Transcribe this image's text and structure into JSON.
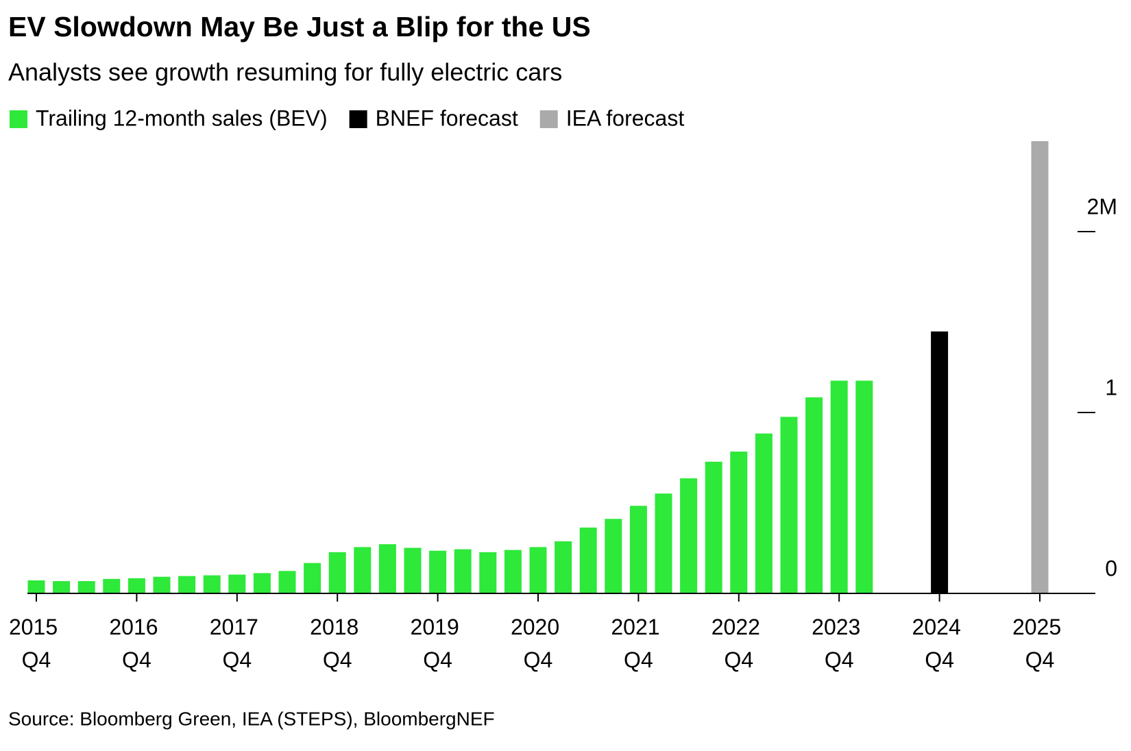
{
  "chart_data": {
    "type": "bar",
    "title": "EV Slowdown May Be Just a Blip for the US",
    "subtitle": "Analysts see growth resuming for fully electric cars",
    "source": "Source: Bloomberg Green, IEA (STEPS), BloombergNEF",
    "categories": [
      "2015 Q4",
      null,
      null,
      null,
      "2016 Q4",
      null,
      null,
      null,
      "2017 Q4",
      null,
      null,
      null,
      "2018 Q4",
      null,
      null,
      null,
      "2019 Q4",
      null,
      null,
      null,
      "2020 Q4",
      null,
      null,
      null,
      "2021 Q4",
      null,
      null,
      null,
      "2022 Q4",
      null,
      null,
      null,
      "2023 Q4",
      null,
      null,
      null,
      "2024 Q4",
      null,
      null,
      null,
      "2025 Q4"
    ],
    "series": [
      {
        "name": "Trailing 12-month sales (BEV)",
        "color": "#2ee83a",
        "values": [
          72000,
          68000,
          68000,
          80000,
          84000,
          92000,
          96000,
          100000,
          104000,
          112000,
          124000,
          168000,
          228000,
          256000,
          272000,
          252000,
          236000,
          244000,
          228000,
          240000,
          256000,
          288000,
          364000,
          412000,
          484000,
          552000,
          636000,
          728000,
          784000,
          884000,
          976000,
          1084000,
          1176000,
          1176000,
          null,
          null,
          null,
          null,
          null,
          null,
          null
        ]
      },
      {
        "name": "BNEF forecast",
        "color": "#000000",
        "values": [
          null,
          null,
          null,
          null,
          null,
          null,
          null,
          null,
          null,
          null,
          null,
          null,
          null,
          null,
          null,
          null,
          null,
          null,
          null,
          null,
          null,
          null,
          null,
          null,
          null,
          null,
          null,
          null,
          null,
          null,
          null,
          null,
          null,
          null,
          null,
          null,
          1448000,
          null,
          null,
          null,
          null
        ]
      },
      {
        "name": "IEA forecast",
        "color": "#aaaaaa",
        "values": [
          null,
          null,
          null,
          null,
          null,
          null,
          null,
          null,
          null,
          null,
          null,
          null,
          null,
          null,
          null,
          null,
          null,
          null,
          null,
          null,
          null,
          null,
          null,
          null,
          null,
          null,
          null,
          null,
          null,
          null,
          null,
          null,
          null,
          null,
          null,
          null,
          null,
          null,
          null,
          null,
          2500000
        ]
      }
    ],
    "ylim": [
      0,
      2500000
    ],
    "yticks": [
      0,
      {
        "value": 1000000,
        "label": "1"
      },
      {
        "value": 2000000,
        "label": "2M"
      }
    ]
  }
}
